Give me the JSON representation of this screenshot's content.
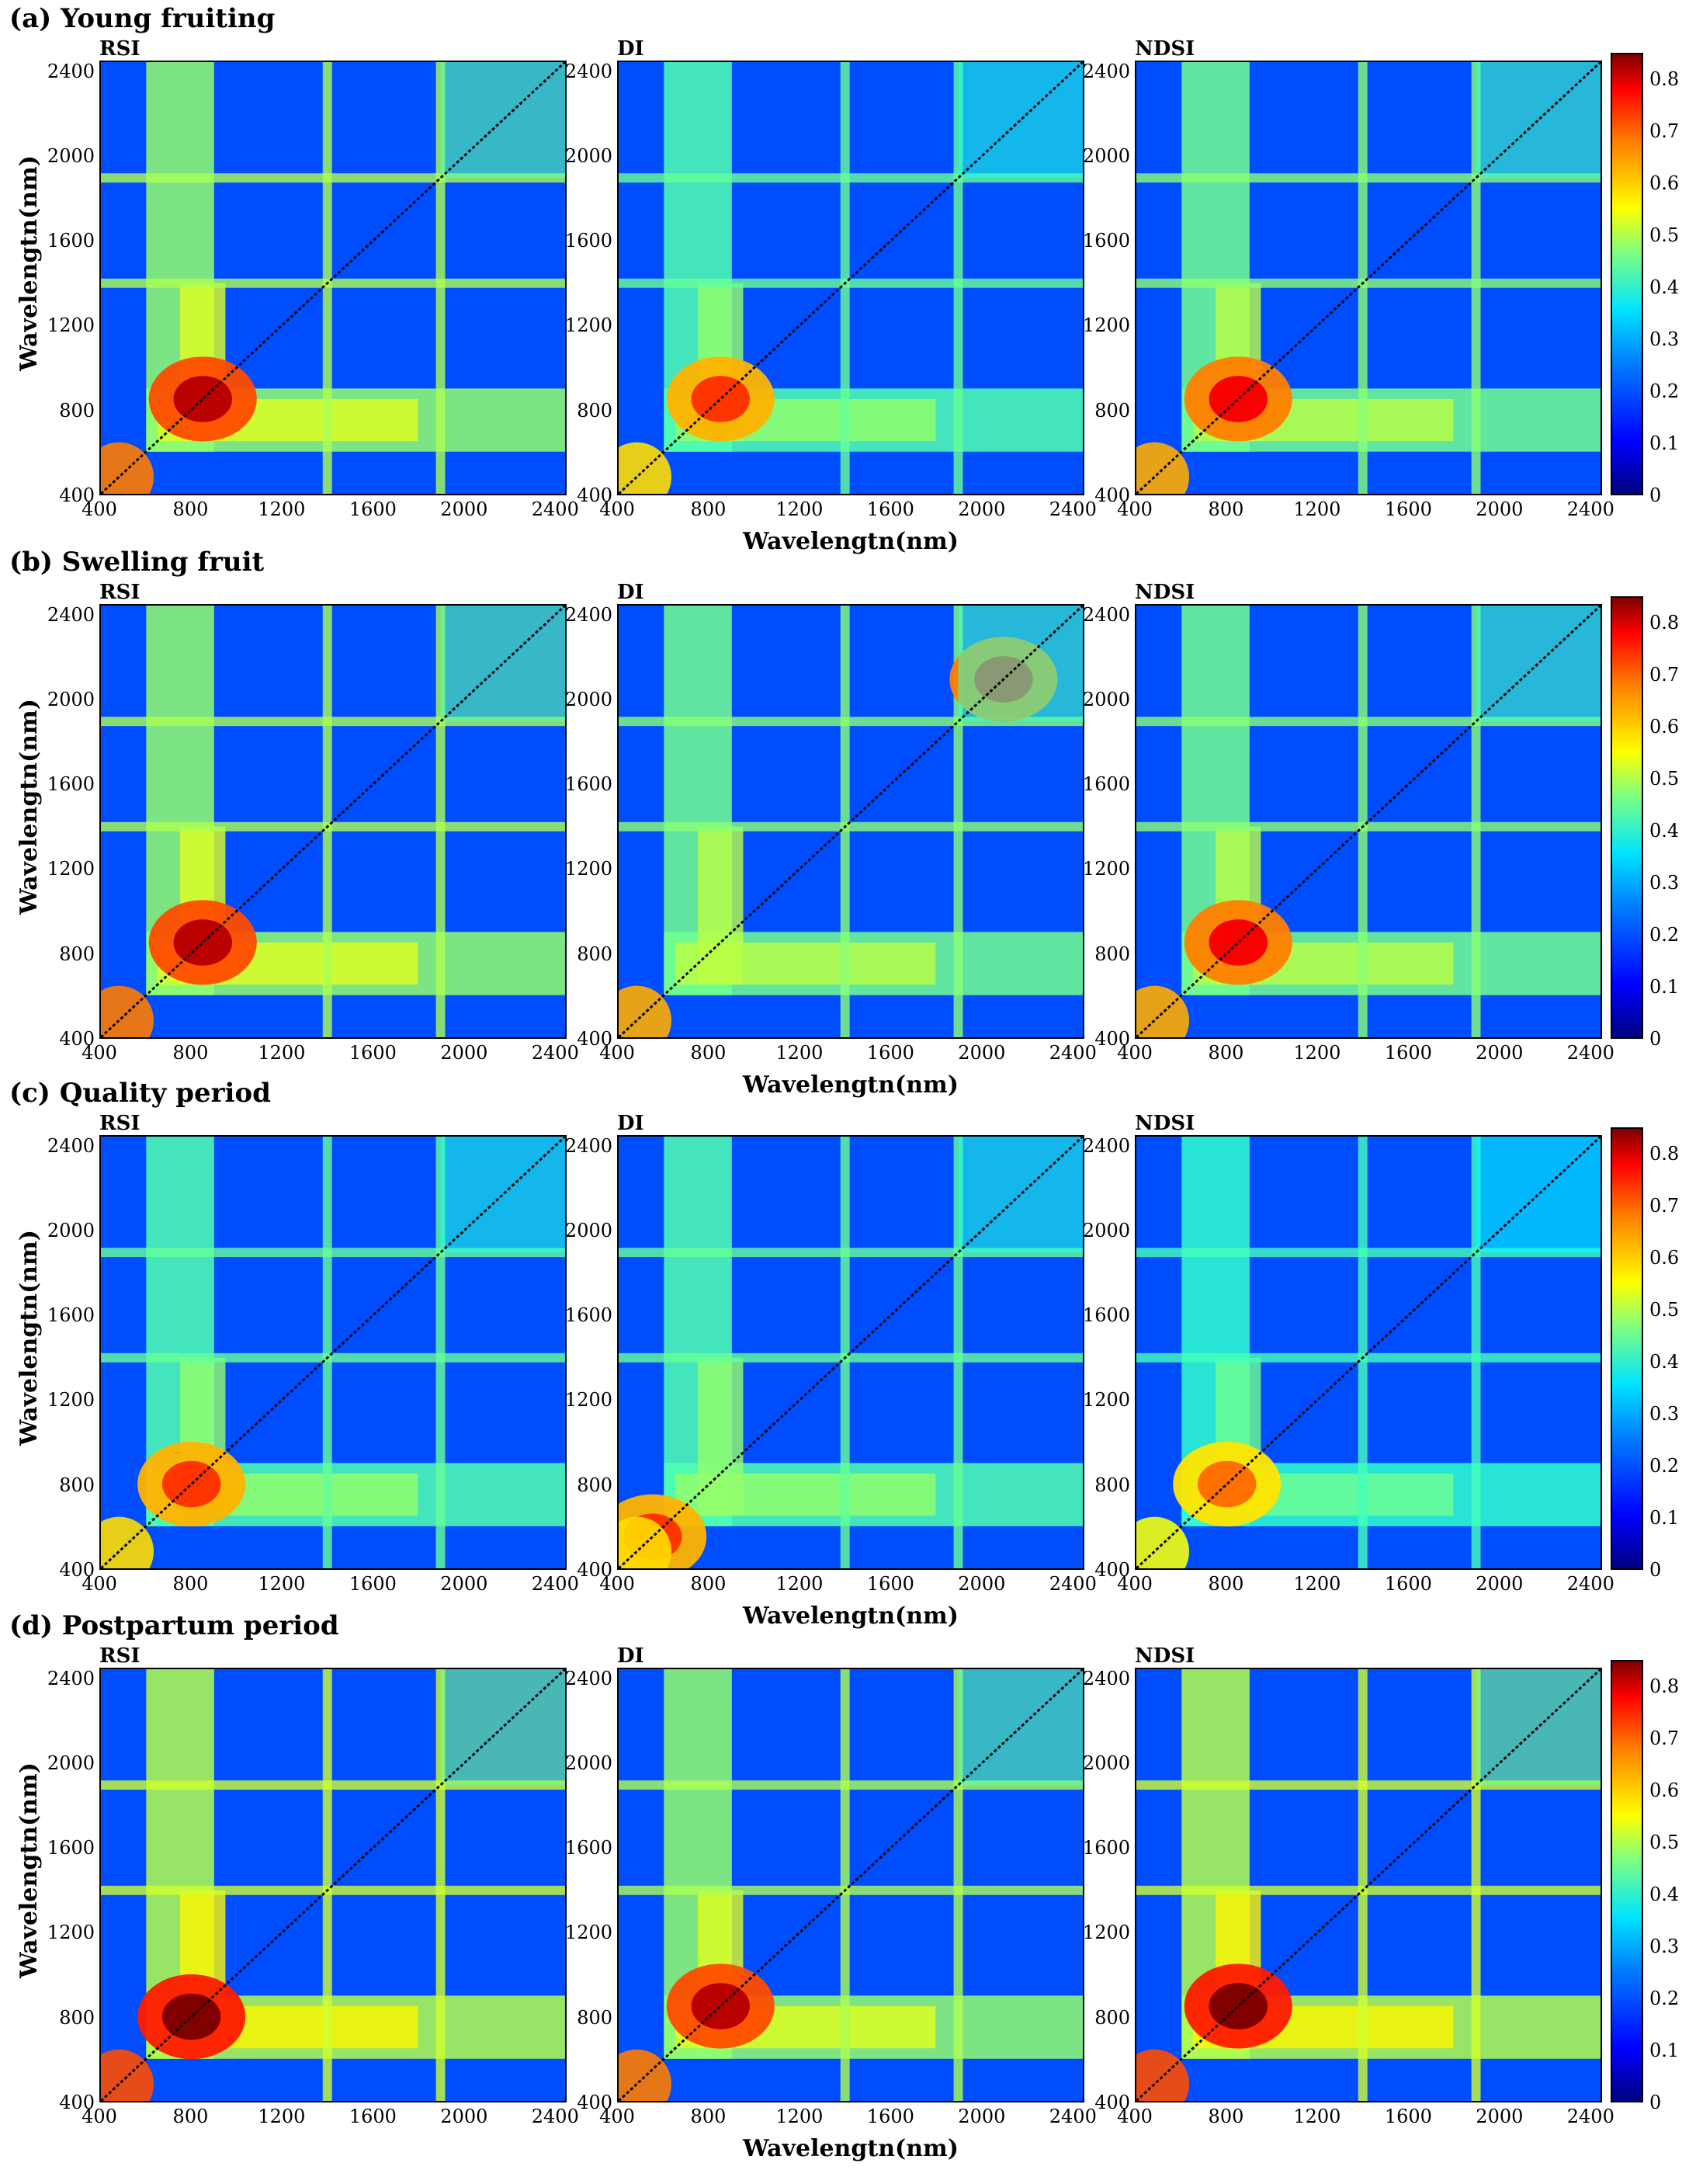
{
  "figure": {
    "rows": [
      {
        "title": "(a) Young fruiting",
        "panels": [
          "RSI",
          "DI",
          "NDSI"
        ],
        "xlabel": "Wavelengtn(nm)",
        "ylabel": "Wavelengtn(nm)"
      },
      {
        "title": "(b) Swelling fruit",
        "panels": [
          "RSI",
          "DI",
          "NDSI"
        ],
        "xlabel": "Wavelengtn(nm)",
        "ylabel": "Wavelengtn(nm)"
      },
      {
        "title": "(c) Quality period",
        "panels": [
          "RSI",
          "DI",
          "NDSI"
        ],
        "xlabel": "Wavelengtn(nm)",
        "ylabel": "Wavelengtn(nm)"
      },
      {
        "title": "(d) Postpartum period",
        "panels": [
          "RSI",
          "DI",
          "NDSI"
        ],
        "xlabel": "Wavelengtn(nm)",
        "ylabel": "Wavelengtn(nm)"
      }
    ]
  },
  "chart_data": {
    "type": "heatmap",
    "x_ticks": [
      "400",
      "800",
      "1200",
      "1600",
      "2000",
      "2400"
    ],
    "y_ticks": [
      "400",
      "800",
      "1200",
      "1600",
      "2000",
      "2400"
    ],
    "xlim": [
      400,
      2450
    ],
    "ylim": [
      400,
      2450
    ],
    "colorbar": {
      "ticks": [
        "0",
        "0.1",
        "0.2",
        "0.3",
        "0.4",
        "0.5",
        "0.6",
        "0.7",
        "0.8"
      ],
      "range": [
        0,
        0.85
      ],
      "colormap": "jet"
    },
    "panels": [
      {
        "row": 0,
        "index": "RSI",
        "peak": 0.8,
        "hot_center": [
          850,
          850
        ]
      },
      {
        "row": 0,
        "index": "DI",
        "peak": 0.7,
        "hot_center": [
          850,
          850
        ]
      },
      {
        "row": 0,
        "index": "NDSI",
        "peak": 0.75,
        "hot_center": [
          850,
          850
        ]
      },
      {
        "row": 1,
        "index": "RSI",
        "peak": 0.8,
        "hot_center": [
          850,
          850
        ]
      },
      {
        "row": 1,
        "index": "DI",
        "peak": 0.75,
        "hot_center": [
          2100,
          2100
        ]
      },
      {
        "row": 1,
        "index": "NDSI",
        "peak": 0.75,
        "hot_center": [
          850,
          850
        ]
      },
      {
        "row": 2,
        "index": "RSI",
        "peak": 0.7,
        "hot_center": [
          800,
          800
        ]
      },
      {
        "row": 2,
        "index": "DI",
        "peak": 0.7,
        "hot_center": [
          550,
          550
        ]
      },
      {
        "row": 2,
        "index": "NDSI",
        "peak": 0.65,
        "hot_center": [
          800,
          800
        ]
      },
      {
        "row": 3,
        "index": "RSI",
        "peak": 0.85,
        "hot_center": [
          800,
          800
        ]
      },
      {
        "row": 3,
        "index": "DI",
        "peak": 0.8,
        "hot_center": [
          850,
          850
        ]
      },
      {
        "row": 3,
        "index": "NDSI",
        "peak": 0.85,
        "hot_center": [
          850,
          850
        ]
      }
    ]
  }
}
